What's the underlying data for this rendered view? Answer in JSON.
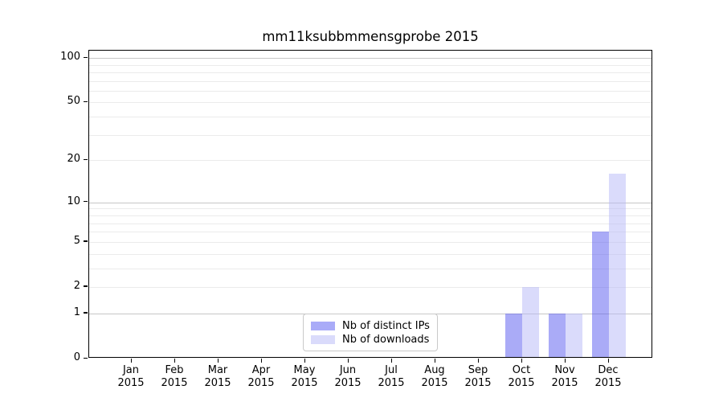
{
  "chart_data": {
    "type": "bar",
    "title": "mm11ksubbmmensgprobe 2015",
    "categories": [
      "Jan",
      "Feb",
      "Mar",
      "Apr",
      "May",
      "Jun",
      "Jul",
      "Aug",
      "Sep",
      "Oct",
      "Nov",
      "Dec"
    ],
    "category_year": "2015",
    "series": [
      {
        "name": "Nb of distinct IPs",
        "color": "rgba(85, 88, 240, 0.5)",
        "solid_color": "#a9abf8",
        "values": [
          0,
          0,
          0,
          0,
          0,
          0,
          0,
          0,
          0,
          1,
          1,
          6
        ]
      },
      {
        "name": "Nb of downloads",
        "color": "rgba(182, 184, 247, 0.5)",
        "solid_color": "#dadbfb",
        "values": [
          0,
          0,
          0,
          0,
          0,
          0,
          0,
          0,
          0,
          2,
          1,
          16
        ]
      }
    ],
    "xlabel": "",
    "ylabel": "",
    "yscale": "log1p",
    "ylim": [
      0,
      112
    ],
    "ytick_values": [
      0,
      1,
      2,
      5,
      10,
      20,
      50,
      100
    ],
    "ytick_labels": [
      "0",
      "1",
      "2",
      "5",
      "10",
      "20",
      "50",
      "100"
    ],
    "major_gridlines": [
      1,
      10,
      100
    ],
    "minor_gridlines": [
      2,
      3,
      4,
      5,
      6,
      7,
      8,
      9,
      20,
      30,
      40,
      50,
      60,
      70,
      80,
      90
    ],
    "grid": true,
    "legend_position": "lower-center-inside",
    "background_color": "#ffffff",
    "spine_color": "#000000",
    "major_grid_color": "#c6c6c6",
    "minor_grid_color": "#ebebeb"
  }
}
